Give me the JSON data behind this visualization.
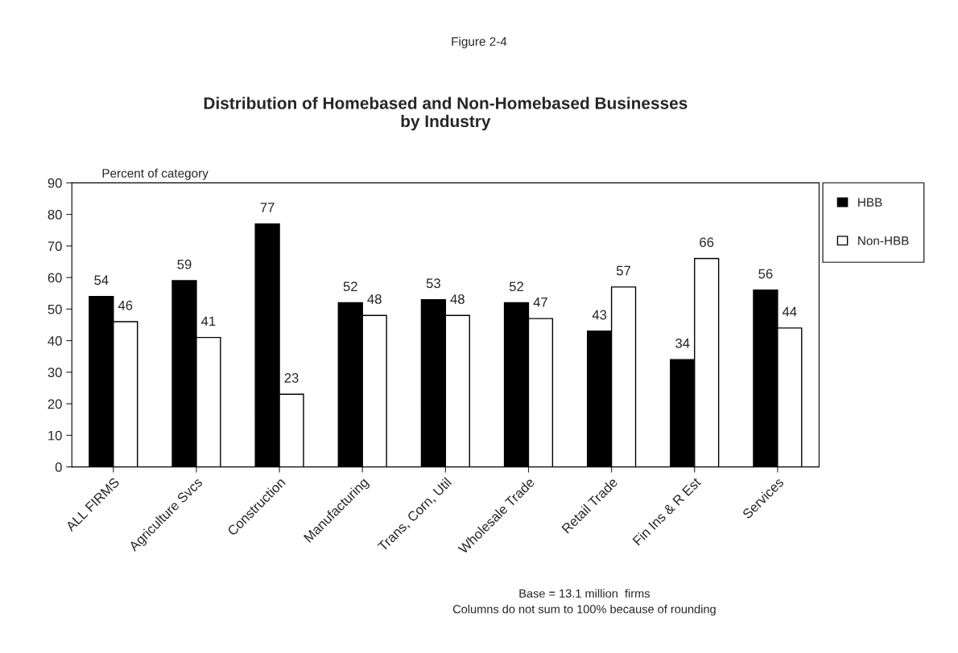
{
  "chart_data": {
    "type": "bar",
    "title": "Distribution of Homebased and Non-Homebased Businesses\nby Industry",
    "ylabel": "Percent of category",
    "categories": [
      "ALL FIRMS",
      "Agriculture Svcs",
      "Construction",
      "Manufacturing",
      "Trans, Corn, Util",
      "Wholesale Trade",
      "Retail Trade",
      "Fin Ins & R Est",
      "Services"
    ],
    "series": [
      {
        "name": "HBB",
        "color": "#000000",
        "values": [
          54,
          59,
          77,
          52,
          53,
          52,
          43,
          34,
          56
        ]
      },
      {
        "name": "Non-HBB",
        "color": "#ffffff",
        "values": [
          46,
          41,
          23,
          48,
          48,
          47,
          57,
          66,
          44
        ]
      }
    ],
    "ylim": [
      0,
      90
    ],
    "yticks": [
      0,
      10,
      20,
      30,
      40,
      50,
      60,
      70,
      80,
      90
    ],
    "data_labels": true,
    "grid": false,
    "legend": "right",
    "annotations": [
      "Figure 2-4",
      "Base = 13.1 million  firms",
      "Columns do not sum to 100% because of rounding"
    ]
  }
}
